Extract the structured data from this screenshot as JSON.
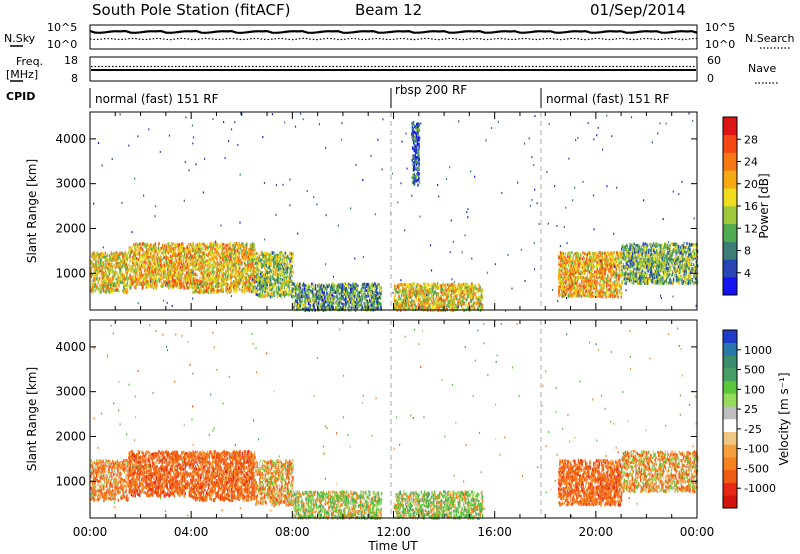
{
  "header": {
    "station": "South Pole Station (fitACF)",
    "beam": "Beam 12",
    "date": "01/Sep/2014"
  },
  "top_panels": {
    "nsky_label": "N.Sky",
    "nsky_left_ticks": [
      "10^5",
      "10^0"
    ],
    "nsky_right_ticks": [
      "10^5",
      "10^0"
    ],
    "nsearch_label": "N.Search",
    "freq_label": "Freq.",
    "freq_unit": "[MHz]",
    "freq_ticks": [
      "18",
      "8"
    ],
    "nave_ticks": [
      "60",
      "0"
    ],
    "nave_label": "Nave",
    "cpid_label": "CPID",
    "cpid_segments": [
      {
        "label": "normal (fast) 151 RF",
        "start_h": 0,
        "end_h": 12
      },
      {
        "label": "rbsp 200 RF",
        "start_h": 12,
        "end_h": 18
      },
      {
        "label": "normal (fast) 151 RF",
        "start_h": 18,
        "end_h": 24
      }
    ]
  },
  "axes": {
    "xlabel": "Time UT",
    "ylabel": "Slant Range [km]",
    "xticks": [
      "00:00",
      "04:00",
      "08:00",
      "12:00",
      "16:00",
      "20:00",
      "00:00"
    ],
    "yticks": [
      "1000",
      "2000",
      "3000",
      "4000"
    ]
  },
  "power_colorbar": {
    "label": "Power [dB]",
    "ticks": [
      "4",
      "8",
      "12",
      "16",
      "20",
      "24",
      "28"
    ],
    "colors": [
      "#1414f0",
      "#2846b4",
      "#3c7d78",
      "#50aa50",
      "#a0c83c",
      "#f0dc1e",
      "#f5aa14",
      "#f57814",
      "#f54614",
      "#dc1414"
    ]
  },
  "velocity_colorbar": {
    "label": "Velocity [m s⁻¹]",
    "ticks": [
      "1000",
      "500",
      "100",
      "25",
      "-25",
      "-100",
      "-500",
      "-1000"
    ],
    "colors": [
      "#1e3cc8",
      "#2878aa",
      "#3c8c6e",
      "#46a064",
      "#5ac83c",
      "#96dc5a",
      "#bebebe",
      "#ffffff",
      "#f0c882",
      "#f5a03c",
      "#f5821e",
      "#f05a14",
      "#e62814",
      "#d2140a"
    ]
  },
  "chart_data": [
    {
      "type": "heatmap",
      "title": "Power",
      "x": "Time UT (hours 0-24)",
      "ylabel": "Slant Range [km]",
      "ylim": [
        180,
        4600
      ],
      "xlim": [
        0,
        24
      ],
      "colorbar_label": "Power [dB]",
      "scatter_regions": [
        {
          "t": [
            0.0,
            1.5
          ],
          "r": [
            600,
            1500
          ],
          "power": 18
        },
        {
          "t": [
            1.5,
            4.0
          ],
          "r": [
            700,
            1700
          ],
          "power": 20
        },
        {
          "t": [
            4.0,
            6.5
          ],
          "r": [
            600,
            1700
          ],
          "power": 19
        },
        {
          "t": [
            6.5,
            8.0
          ],
          "r": [
            500,
            1500
          ],
          "power": 14
        },
        {
          "t": [
            8.0,
            11.5
          ],
          "r": [
            200,
            800
          ],
          "power": 10
        },
        {
          "t": [
            12.0,
            15.5
          ],
          "r": [
            200,
            800
          ],
          "power": 18
        },
        {
          "t": [
            12.7,
            13.0
          ],
          "r": [
            3000,
            4400
          ],
          "power": 6
        },
        {
          "t": [
            18.5,
            21.0
          ],
          "r": [
            500,
            1500
          ],
          "power": 20
        },
        {
          "t": [
            21.0,
            24.0
          ],
          "r": [
            800,
            1700
          ],
          "power": 12
        }
      ]
    },
    {
      "type": "heatmap",
      "title": "Velocity",
      "x": "Time UT (hours 0-24)",
      "ylabel": "Slant Range [km]",
      "ylim": [
        180,
        4600
      ],
      "xlim": [
        0,
        24
      ],
      "colorbar_label": "Velocity [m s-1]",
      "scatter_regions": [
        {
          "t": [
            0.0,
            1.5
          ],
          "r": [
            600,
            1500
          ],
          "velocity": -150
        },
        {
          "t": [
            1.5,
            4.0
          ],
          "r": [
            700,
            1700
          ],
          "velocity": -300
        },
        {
          "t": [
            4.0,
            6.5
          ],
          "r": [
            600,
            1700
          ],
          "velocity": -300
        },
        {
          "t": [
            6.5,
            8.0
          ],
          "r": [
            500,
            1500
          ],
          "velocity": -100
        },
        {
          "t": [
            8.0,
            11.5
          ],
          "r": [
            200,
            800
          ],
          "velocity": 50
        },
        {
          "t": [
            12.0,
            15.5
          ],
          "r": [
            200,
            800
          ],
          "velocity": 80
        },
        {
          "t": [
            18.5,
            21.0
          ],
          "r": [
            500,
            1500
          ],
          "velocity": -300
        },
        {
          "t": [
            21.0,
            24.0
          ],
          "r": [
            800,
            1700
          ],
          "velocity": -100
        }
      ]
    }
  ]
}
